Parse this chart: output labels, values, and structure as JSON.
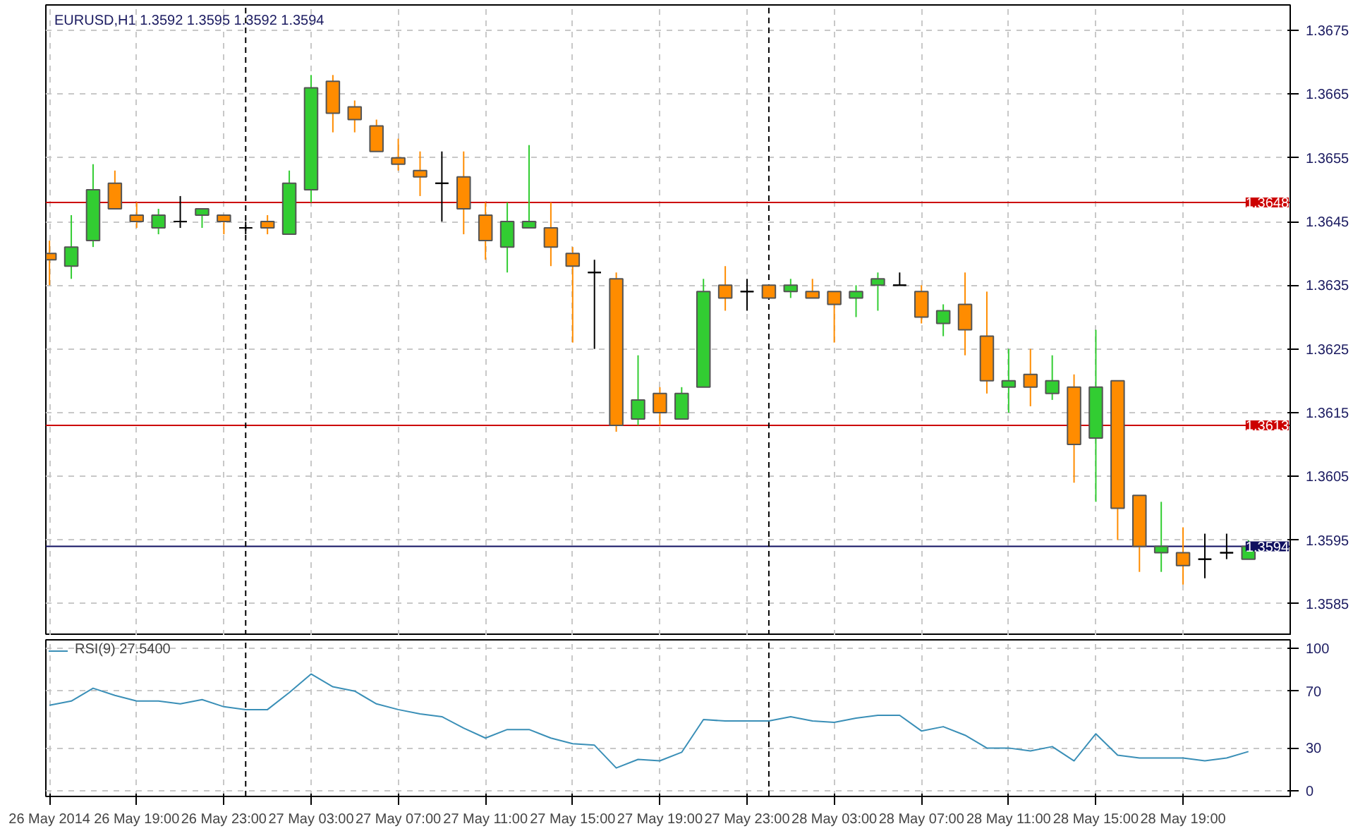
{
  "chart_data": [
    {
      "type": "candlestick",
      "title": "EURUSD,H1 1.3592 1.3595 1.3592 1.3594",
      "x": [
        "2014-05-26T15:00",
        "2014-05-26T16:00",
        "2014-05-26T17:00",
        "2014-05-26T18:00",
        "2014-05-26T19:00",
        "2014-05-26T20:00",
        "2014-05-26T21:00",
        "2014-05-26T22:00",
        "2014-05-26T23:00",
        "2014-05-27T00:00",
        "2014-05-27T01:00",
        "2014-05-27T02:00",
        "2014-05-27T03:00",
        "2014-05-27T04:00",
        "2014-05-27T05:00",
        "2014-05-27T06:00",
        "2014-05-27T07:00",
        "2014-05-27T08:00",
        "2014-05-27T09:00",
        "2014-05-27T10:00",
        "2014-05-27T11:00",
        "2014-05-27T12:00",
        "2014-05-27T13:00",
        "2014-05-27T14:00",
        "2014-05-27T15:00",
        "2014-05-27T16:00",
        "2014-05-27T17:00",
        "2014-05-27T18:00",
        "2014-05-27T19:00",
        "2014-05-27T20:00",
        "2014-05-27T21:00",
        "2014-05-27T22:00",
        "2014-05-27T23:00",
        "2014-05-28T00:00",
        "2014-05-28T01:00",
        "2014-05-28T02:00",
        "2014-05-28T03:00",
        "2014-05-28T04:00",
        "2014-05-28T05:00",
        "2014-05-28T06:00",
        "2014-05-28T07:00",
        "2014-05-28T08:00",
        "2014-05-28T09:00",
        "2014-05-28T10:00",
        "2014-05-28T11:00",
        "2014-05-28T12:00",
        "2014-05-28T13:00",
        "2014-05-28T14:00",
        "2014-05-28T15:00",
        "2014-05-28T16:00",
        "2014-05-28T17:00",
        "2014-05-28T18:00",
        "2014-05-28T19:00",
        "2014-05-28T20:00",
        "2014-05-28T21:00",
        "2014-05-28T22:00"
      ],
      "ohlc": [
        [
          1.364,
          1.3642,
          1.3635,
          1.3639
        ],
        [
          1.3638,
          1.3646,
          1.3636,
          1.3641
        ],
        [
          1.3642,
          1.3654,
          1.3641,
          1.365
        ],
        [
          1.3651,
          1.3653,
          1.3647,
          1.3647
        ],
        [
          1.3646,
          1.3648,
          1.3644,
          1.3645
        ],
        [
          1.3644,
          1.3647,
          1.3643,
          1.3646
        ],
        [
          1.3645,
          1.3649,
          1.3644,
          1.3645
        ],
        [
          1.3646,
          1.3647,
          1.3644,
          1.3647
        ],
        [
          1.3646,
          1.3646,
          1.3643,
          1.3645
        ],
        [
          1.3644,
          1.3645,
          1.3643,
          1.3644
        ],
        [
          1.3645,
          1.3646,
          1.3643,
          1.3644
        ],
        [
          1.3643,
          1.3653,
          1.3643,
          1.3651
        ],
        [
          1.365,
          1.3668,
          1.3648,
          1.3666
        ],
        [
          1.3667,
          1.3668,
          1.3659,
          1.3662
        ],
        [
          1.3663,
          1.3664,
          1.3659,
          1.3661
        ],
        [
          1.366,
          1.3661,
          1.3656,
          1.3656
        ],
        [
          1.3655,
          1.3658,
          1.3653,
          1.3654
        ],
        [
          1.3653,
          1.3656,
          1.3649,
          1.3652
        ],
        [
          1.3651,
          1.3656,
          1.3645,
          1.3651
        ],
        [
          1.3652,
          1.3656,
          1.3643,
          1.3647
        ],
        [
          1.3646,
          1.3648,
          1.3639,
          1.3642
        ],
        [
          1.3641,
          1.3648,
          1.3637,
          1.3645
        ],
        [
          1.3644,
          1.3657,
          1.3644,
          1.3645
        ],
        [
          1.3644,
          1.3648,
          1.3638,
          1.3641
        ],
        [
          1.364,
          1.3641,
          1.3626,
          1.3638
        ],
        [
          1.3637,
          1.3639,
          1.3625,
          1.3637
        ],
        [
          1.3636,
          1.3637,
          1.3612,
          1.3613
        ],
        [
          1.3614,
          1.3624,
          1.3613,
          1.3617
        ],
        [
          1.3618,
          1.3619,
          1.3613,
          1.3615
        ],
        [
          1.3614,
          1.3619,
          1.3614,
          1.3618
        ],
        [
          1.3619,
          1.3636,
          1.3619,
          1.3634
        ],
        [
          1.3635,
          1.3638,
          1.3631,
          1.3633
        ],
        [
          1.3634,
          1.3636,
          1.3631,
          1.3634
        ],
        [
          1.3635,
          1.3635,
          1.3633,
          1.3633
        ],
        [
          1.3634,
          1.3636,
          1.3633,
          1.3635
        ],
        [
          1.3634,
          1.3636,
          1.3633,
          1.3633
        ],
        [
          1.3634,
          1.3634,
          1.3626,
          1.3632
        ],
        [
          1.3633,
          1.3635,
          1.363,
          1.3634
        ],
        [
          1.3635,
          1.3637,
          1.3631,
          1.3636
        ],
        [
          1.3635,
          1.3637,
          1.3635,
          1.3635
        ],
        [
          1.3634,
          1.3635,
          1.3629,
          1.363
        ],
        [
          1.3629,
          1.3632,
          1.3627,
          1.3631
        ],
        [
          1.3632,
          1.3637,
          1.3624,
          1.3628
        ],
        [
          1.3627,
          1.3634,
          1.3618,
          1.362
        ],
        [
          1.3619,
          1.3625,
          1.3615,
          1.362
        ],
        [
          1.3621,
          1.3625,
          1.3616,
          1.3619
        ],
        [
          1.3618,
          1.3624,
          1.3617,
          1.362
        ],
        [
          1.3619,
          1.3621,
          1.3604,
          1.361
        ],
        [
          1.3611,
          1.3628,
          1.3601,
          1.3619
        ],
        [
          1.362,
          1.362,
          1.3595,
          1.36
        ],
        [
          1.3602,
          1.3602,
          1.359,
          1.3594
        ],
        [
          1.3593,
          1.3601,
          1.359,
          1.3594
        ],
        [
          1.3593,
          1.3597,
          1.3588,
          1.3591
        ],
        [
          1.3592,
          1.3596,
          1.3589,
          1.3592
        ],
        [
          1.3593,
          1.3596,
          1.3592,
          1.3593
        ],
        [
          1.3592,
          1.3595,
          1.3592,
          1.3594
        ]
      ],
      "colors": [
        "#ff8c00",
        "#32cd32",
        "#32cd32",
        "#ff8c00",
        "#ff8c00",
        "#32cd32",
        "#000000",
        "#32cd32",
        "#ff8c00",
        "#000000",
        "#ff8c00",
        "#32cd32",
        "#32cd32",
        "#ff8c00",
        "#ff8c00",
        "#ff8c00",
        "#ff8c00",
        "#ff8c00",
        "#000000",
        "#ff8c00",
        "#ff8c00",
        "#32cd32",
        "#32cd32",
        "#ff8c00",
        "#ff8c00",
        "#000000",
        "#ff8c00",
        "#32cd32",
        "#ff8c00",
        "#32cd32",
        "#32cd32",
        "#ff8c00",
        "#000000",
        "#ff8c00",
        "#32cd32",
        "#ff8c00",
        "#ff8c00",
        "#32cd32",
        "#32cd32",
        "#000000",
        "#ff8c00",
        "#32cd32",
        "#ff8c00",
        "#ff8c00",
        "#32cd32",
        "#ff8c00",
        "#32cd32",
        "#ff8c00",
        "#32cd32",
        "#ff8c00",
        "#ff8c00",
        "#32cd32",
        "#ff8c00",
        "#000000",
        "#000000",
        "#32cd32"
      ],
      "xlim": [
        "2014-05-26T14:50",
        "2014-05-28T23:55"
      ],
      "xticks": [
        {
          "value": "2014-05-26T15:00",
          "label": null
        },
        {
          "value": "2014-05-26T19:00",
          "label": null
        },
        {
          "value": "2014-05-26T23:00",
          "label": null
        },
        {
          "value": "2014-05-27T03:00",
          "label": null
        },
        {
          "value": "2014-05-27T07:00",
          "label": null
        },
        {
          "value": "2014-05-27T11:00",
          "label": null
        },
        {
          "value": "2014-05-27T15:00",
          "label": null
        },
        {
          "value": "2014-05-27T19:00",
          "label": null
        },
        {
          "value": "2014-05-27T23:00",
          "label": null
        },
        {
          "value": "2014-05-28T03:00",
          "label": null
        },
        {
          "value": "2014-05-28T07:00",
          "label": null
        },
        {
          "value": "2014-05-28T11:00",
          "label": null
        },
        {
          "value": "2014-05-28T15:00",
          "label": null
        },
        {
          "value": "2014-05-28T19:00",
          "label": null
        }
      ],
      "ylim": [
        1.358,
        1.3679
      ],
      "yticks": [
        1.3585,
        1.3595,
        1.3605,
        1.3615,
        1.3625,
        1.3635,
        1.3645,
        1.3655,
        1.3665,
        1.3675
      ],
      "ref_lines": [
        {
          "axis": "y",
          "value": 1.3648,
          "label": "1.3648",
          "color": "#cc0000"
        },
        {
          "axis": "y",
          "value": 1.3613,
          "label": "1.3613",
          "color": "#cc0000"
        },
        {
          "axis": "y",
          "value": 1.3594,
          "label": "1.3594",
          "color": "#101060"
        },
        {
          "axis": "x",
          "value": "2014-05-27T00:00",
          "label": null,
          "color": "#000000",
          "line_style": "dashed"
        },
        {
          "axis": "x",
          "value": "2014-05-28T00:00",
          "label": null,
          "color": "#000000",
          "line_style": "dashed"
        }
      ],
      "grid": true,
      "tick_labels": "y"
    },
    {
      "type": "line",
      "x": [
        "2014-05-26T15:00",
        "2014-05-26T16:00",
        "2014-05-26T17:00",
        "2014-05-26T18:00",
        "2014-05-26T19:00",
        "2014-05-26T20:00",
        "2014-05-26T21:00",
        "2014-05-26T22:00",
        "2014-05-26T23:00",
        "2014-05-27T00:00",
        "2014-05-27T01:00",
        "2014-05-27T02:00",
        "2014-05-27T03:00",
        "2014-05-27T04:00",
        "2014-05-27T05:00",
        "2014-05-27T06:00",
        "2014-05-27T07:00",
        "2014-05-27T08:00",
        "2014-05-27T09:00",
        "2014-05-27T10:00",
        "2014-05-27T11:00",
        "2014-05-27T12:00",
        "2014-05-27T13:00",
        "2014-05-27T14:00",
        "2014-05-27T15:00",
        "2014-05-27T16:00",
        "2014-05-27T17:00",
        "2014-05-27T18:00",
        "2014-05-27T19:00",
        "2014-05-27T20:00",
        "2014-05-27T21:00",
        "2014-05-27T22:00",
        "2014-05-27T23:00",
        "2014-05-28T00:00",
        "2014-05-28T01:00",
        "2014-05-28T02:00",
        "2014-05-28T03:00",
        "2014-05-28T04:00",
        "2014-05-28T05:00",
        "2014-05-28T06:00",
        "2014-05-28T07:00",
        "2014-05-28T08:00",
        "2014-05-28T09:00",
        "2014-05-28T10:00",
        "2014-05-28T11:00",
        "2014-05-28T12:00",
        "2014-05-28T13:00",
        "2014-05-28T14:00",
        "2014-05-28T15:00",
        "2014-05-28T16:00",
        "2014-05-28T17:00",
        "2014-05-28T18:00",
        "2014-05-28T19:00",
        "2014-05-28T20:00",
        "2014-05-28T21:00",
        "2014-05-28T22:00"
      ],
      "series": [
        {
          "name": "RSI(9) 27.5400",
          "color": "#3a8fb7",
          "values": [
            60,
            63,
            72,
            67,
            63,
            63,
            61,
            64,
            59,
            57,
            57,
            69,
            82,
            73,
            70,
            61,
            57,
            54,
            52,
            44,
            37,
            43,
            43,
            37,
            33,
            32,
            16,
            22,
            21,
            27,
            50,
            49,
            49,
            49,
            52,
            49,
            48,
            51,
            53,
            53,
            42,
            45,
            39,
            30,
            30,
            28,
            31,
            21,
            40,
            25,
            23,
            23,
            23,
            21,
            23,
            27.54
          ]
        }
      ],
      "xlim": [
        "2014-05-26T14:50",
        "2014-05-28T23:55"
      ],
      "xticks": [
        {
          "value": "2014-05-26T15:00",
          "label": "26 May 2014"
        },
        {
          "value": "2014-05-26T19:00",
          "label": "26 May 19:00"
        },
        {
          "value": "2014-05-26T23:00",
          "label": "26 May 23:00"
        },
        {
          "value": "2014-05-27T03:00",
          "label": "27 May 03:00"
        },
        {
          "value": "2014-05-27T07:00",
          "label": "27 May 07:00"
        },
        {
          "value": "2014-05-27T11:00",
          "label": "27 May 11:00"
        },
        {
          "value": "2014-05-27T15:00",
          "label": "27 May 15:00"
        },
        {
          "value": "2014-05-27T19:00",
          "label": "27 May 19:00"
        },
        {
          "value": "2014-05-27T23:00",
          "label": "27 May 23:00"
        },
        {
          "value": "2014-05-28T03:00",
          "label": "28 May 03:00"
        },
        {
          "value": "2014-05-28T07:00",
          "label": "28 May 07:00"
        },
        {
          "value": "2014-05-28T11:00",
          "label": "28 May 11:00"
        },
        {
          "value": "2014-05-28T15:00",
          "label": "28 May 15:00"
        },
        {
          "value": "2014-05-28T19:00",
          "label": "28 May 19:00"
        }
      ],
      "ylim": [
        -4,
        106
      ],
      "yticks": [
        0,
        30,
        70,
        100
      ],
      "ref_lines": [
        {
          "axis": "x",
          "value": "2014-05-27T00:00",
          "label": null,
          "color": "#000000",
          "line_style": "dashed"
        },
        {
          "axis": "x",
          "value": "2014-05-28T00:00",
          "label": null,
          "color": "#000000",
          "line_style": "dashed"
        }
      ],
      "grid": true,
      "legend": "top left"
    }
  ]
}
